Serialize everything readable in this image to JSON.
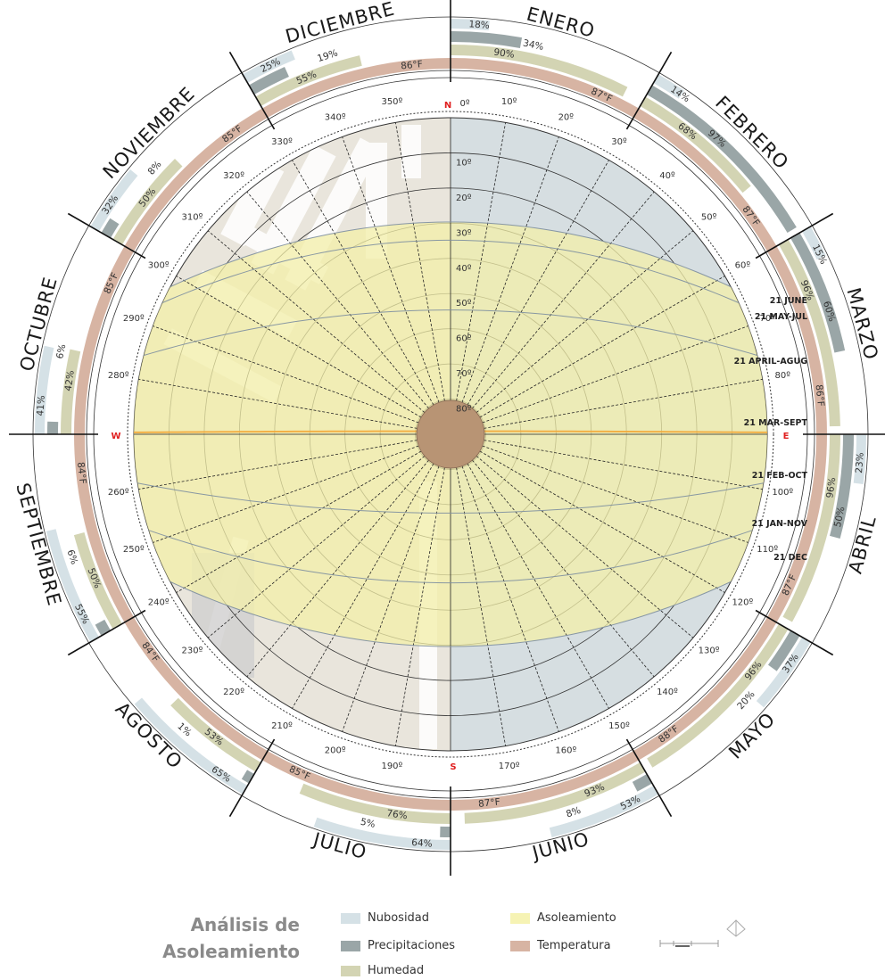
{
  "months": [
    {
      "name": "ENERO",
      "temp": "87°F",
      "humidity": "90%",
      "precip": "34%",
      "cloud": "18%"
    },
    {
      "name": "FEBRERO",
      "temp": "87°F",
      "humidity": "68%",
      "precip": "97%",
      "cloud": "14%"
    },
    {
      "name": "MARZO",
      "temp": "86°F",
      "humidity": "96%",
      "precip": "60%",
      "cloud": "15%"
    },
    {
      "name": "ABRIL",
      "temp": "87°F",
      "humidity": "96%",
      "precip": "50%",
      "cloud": "23%"
    },
    {
      "name": "MAYO",
      "temp": "88°F",
      "humidity": "96%",
      "precip": "20%",
      "cloud": "37%"
    },
    {
      "name": "JUNIO",
      "temp": "87°F",
      "humidity": "93%",
      "precip": "8%",
      "cloud": "53%"
    },
    {
      "name": "JULIO",
      "temp": "85°F",
      "humidity": "76%",
      "precip": "5%",
      "cloud": "64%"
    },
    {
      "name": "AGOSTO",
      "temp": "84°F",
      "humidity": "53%",
      "precip": "1%",
      "cloud": "65%"
    },
    {
      "name": "SEPTIEMBRE",
      "temp": "84°F",
      "humidity": "50%",
      "precip": "6%",
      "cloud": "55%"
    },
    {
      "name": "OCTUBRE",
      "temp": "85°F",
      "humidity": "42%",
      "precip": "6%",
      "cloud": "41%"
    },
    {
      "name": "NOVIEMBRE",
      "temp": "85°F",
      "humidity": "50%",
      "precip": "8%",
      "cloud": "32%"
    },
    {
      "name": "DICIEMBRE",
      "temp": "86°F",
      "humidity": "55%",
      "precip": "19%",
      "cloud": "25%"
    }
  ],
  "cardinals": {
    "n": "N",
    "s": "S",
    "e": "E",
    "w": "W"
  },
  "sun_paths": [
    {
      "label": "21 JUNE"
    },
    {
      "label": "21 MAY-JUL"
    },
    {
      "label": "21 APRIL-AGUG"
    },
    {
      "label": "21 MAR-SEPT"
    },
    {
      "label": "21 FEB-OCT"
    },
    {
      "label": "21 JAN-NOV"
    },
    {
      "label": "21 DEC"
    }
  ],
  "colors": {
    "cloud": "#d5e1e6",
    "precip": "#9aa6a7",
    "humidity": "#d3d4b3",
    "temperature": "#d7b4a3",
    "sun": "#f3efa8",
    "sun_line": "#f2a83a"
  },
  "legend": {
    "title_line1": "Análisis de",
    "title_line2": "Asoleamiento",
    "cloud": "Nubosidad",
    "precip": "Precipitaciones",
    "humidity": "Humedad",
    "sun": "Asoleamiento",
    "temperature": "Temperatura"
  }
}
